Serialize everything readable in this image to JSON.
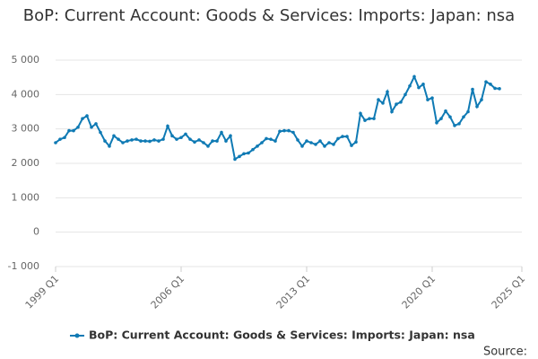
{
  "chart_data": {
    "type": "line",
    "title": "BoP: Current Account: Goods & Services: Imports: Japan: nsa",
    "source": "Source:",
    "categories": [
      "1999 Q1",
      null,
      null,
      null,
      null,
      null,
      null,
      null,
      null,
      null,
      null,
      null,
      null,
      null,
      null,
      null,
      null,
      null,
      null,
      null,
      null,
      null,
      null,
      null,
      null,
      null,
      null,
      null,
      "2006 Q1",
      null,
      null,
      null,
      null,
      null,
      null,
      null,
      null,
      null,
      null,
      null,
      null,
      null,
      null,
      null,
      null,
      null,
      null,
      null,
      null,
      null,
      null,
      null,
      null,
      null,
      null,
      null,
      "2013 Q1",
      null,
      null,
      null,
      null,
      null,
      null,
      null,
      null,
      null,
      null,
      null,
      null,
      null,
      null,
      null,
      null,
      null,
      null,
      null,
      null,
      null,
      null,
      null,
      null,
      null,
      null,
      null,
      "2020 Q1",
      null,
      null,
      null,
      null,
      null,
      null,
      null,
      null,
      null,
      null,
      null,
      null,
      null,
      null,
      null,
      null,
      null,
      null,
      null,
      "2025 Q1"
    ],
    "series": [
      {
        "name": "BoP: Current Account: Goods & Services: Imports: Japan: nsa",
        "color": "#0f7ab4",
        "values": [
          2600,
          2700,
          2750,
          2950,
          2950,
          3050,
          3300,
          3380,
          3050,
          3150,
          2900,
          2650,
          2500,
          2800,
          2700,
          2600,
          2650,
          2680,
          2700,
          2650,
          2650,
          2640,
          2680,
          2650,
          2700,
          3080,
          2800,
          2700,
          2750,
          2850,
          2700,
          2620,
          2680,
          2600,
          2500,
          2650,
          2650,
          2900,
          2650,
          2800,
          2120,
          2200,
          2280,
          2300,
          2400,
          2500,
          2600,
          2720,
          2700,
          2650,
          2930,
          2950,
          2950,
          2900,
          2680,
          2500,
          2650,
          2600,
          2550,
          2650,
          2500,
          2600,
          2550,
          2720,
          2780,
          2780,
          2520,
          2620,
          3450,
          3250,
          3300,
          3300,
          3850,
          3750,
          4080,
          3500,
          3720,
          3780,
          4000,
          4250,
          4520,
          4200,
          4300,
          3850,
          3900,
          3180,
          3300,
          3520,
          3350,
          3100,
          3150,
          3350,
          3500,
          4150,
          3650,
          3850,
          4370,
          4300,
          4180,
          4170,
          null,
          null,
          null,
          null,
          null
        ]
      }
    ],
    "ylim": [
      -1000,
      5000
    ],
    "yticks": [
      {
        "value": -1000,
        "label": "-1 000"
      },
      0,
      {
        "value": 1000,
        "label": "1 000"
      },
      {
        "value": 2000,
        "label": "2 000"
      },
      {
        "value": 3000,
        "label": "3 000"
      },
      {
        "value": 4000,
        "label": "4 000"
      },
      {
        "value": 5000,
        "label": "5 000"
      }
    ],
    "grid": true
  }
}
